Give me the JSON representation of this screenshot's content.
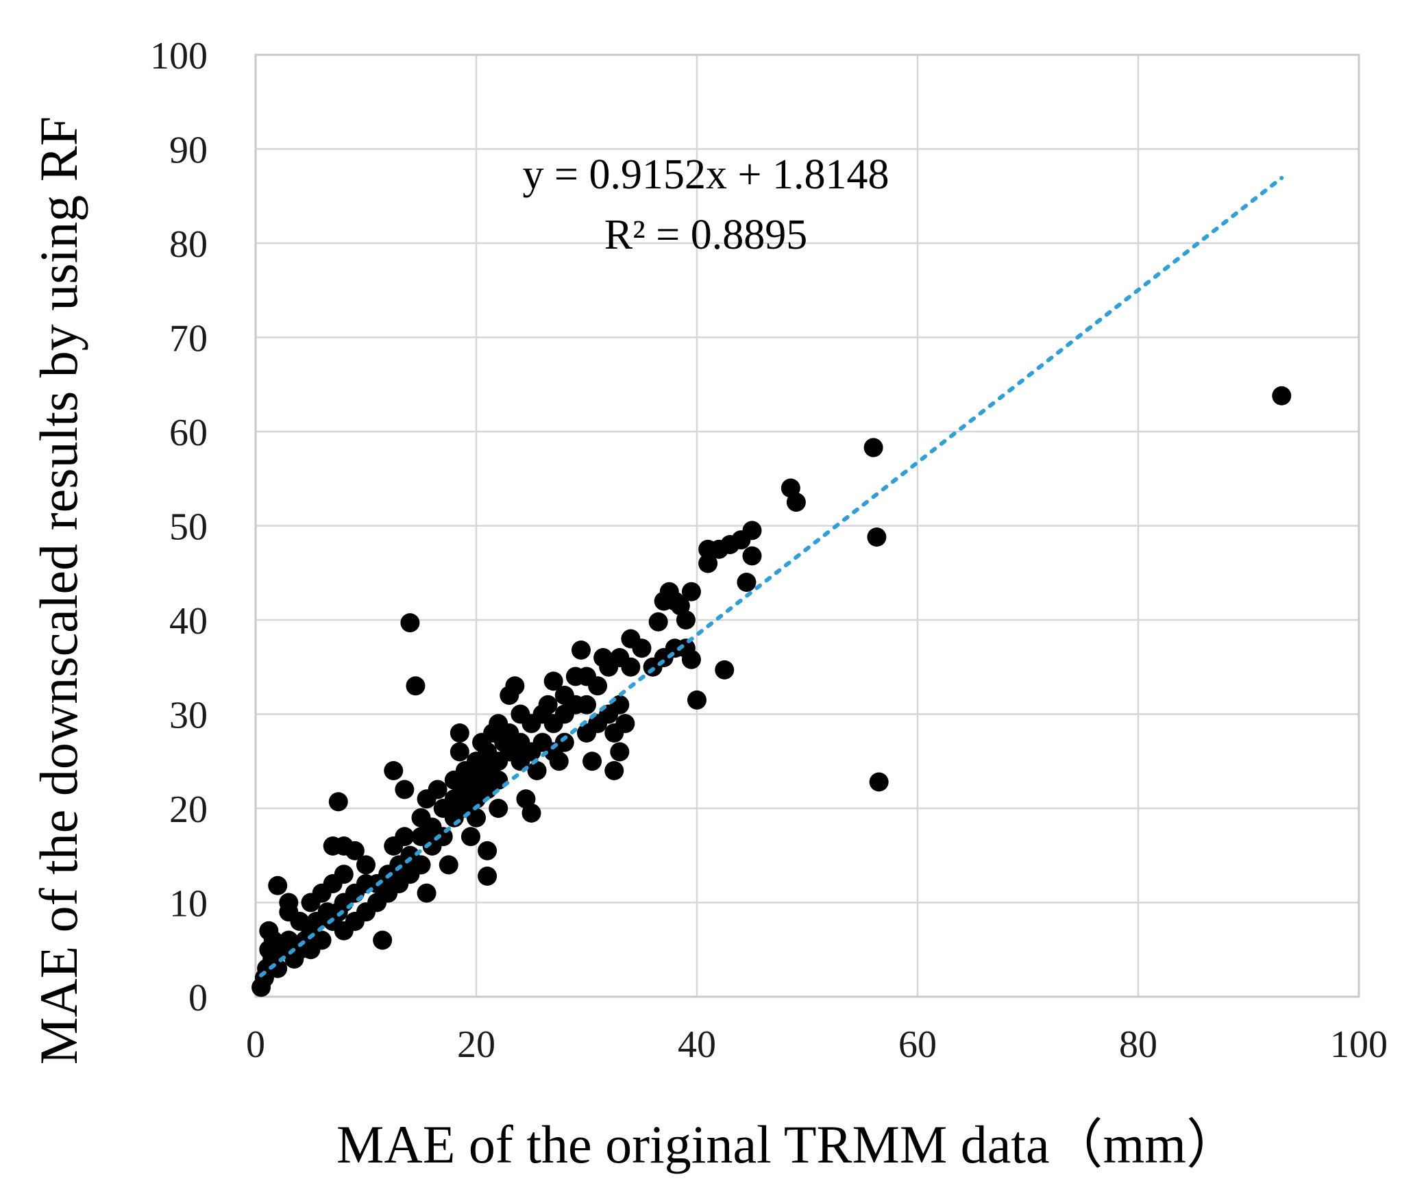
{
  "chart_data": {
    "type": "scatter",
    "xlabel": "MAE  of the original TRMM data（mm）",
    "ylabel": "MAE  of the downscaled results by using RF",
    "xlim": [
      0,
      100
    ],
    "ylim": [
      0,
      100
    ],
    "xticks": [
      "0",
      "20",
      "40",
      "60",
      "80",
      "100"
    ],
    "yticks": [
      "0",
      "10",
      "20",
      "30",
      "40",
      "50",
      "60",
      "70",
      "80",
      "90",
      "100"
    ],
    "grid": true,
    "legend": "none",
    "trendline": {
      "slope": 0.9152,
      "intercept": 1.8148,
      "x_range": [
        0.5,
        93
      ],
      "style": "dotted",
      "color": "#2e9fd9",
      "equation": "y = 0.9152x  + 1.8148",
      "r_squared": "R² = 0.8895"
    },
    "point_color": "#000000",
    "series": [
      {
        "points": [
          [
            0.5,
            1
          ],
          [
            0.8,
            2
          ],
          [
            1,
            3
          ],
          [
            1.2,
            5
          ],
          [
            1.5,
            4
          ],
          [
            2,
            3
          ],
          [
            2,
            11.8
          ],
          [
            1.2,
            7
          ],
          [
            1.6,
            6
          ],
          [
            2.5,
            5
          ],
          [
            3,
            6
          ],
          [
            3,
            9
          ],
          [
            3,
            10
          ],
          [
            3.5,
            4
          ],
          [
            4,
            8
          ],
          [
            4,
            5
          ],
          [
            4.5,
            6
          ],
          [
            5,
            7
          ],
          [
            5,
            10
          ],
          [
            5,
            5
          ],
          [
            5.5,
            8
          ],
          [
            6,
            11
          ],
          [
            6,
            6
          ],
          [
            6.5,
            9
          ],
          [
            7,
            8
          ],
          [
            7,
            12
          ],
          [
            7.5,
            9
          ],
          [
            8,
            10
          ],
          [
            8,
            7
          ],
          [
            8,
            13
          ],
          [
            7.5,
            20.7
          ],
          [
            7,
            16
          ],
          [
            8,
            16
          ],
          [
            9,
            15.5
          ],
          [
            9,
            11
          ],
          [
            9,
            8
          ],
          [
            10,
            12
          ],
          [
            10,
            9
          ],
          [
            10,
            14
          ],
          [
            11,
            12
          ],
          [
            11,
            10
          ],
          [
            11.5,
            6
          ],
          [
            12,
            13
          ],
          [
            12,
            11
          ],
          [
            12.5,
            24
          ],
          [
            12.5,
            16
          ],
          [
            13,
            14
          ],
          [
            13,
            12
          ],
          [
            13.5,
            17
          ],
          [
            13.5,
            22
          ],
          [
            14,
            15
          ],
          [
            14,
            13
          ],
          [
            14,
            39.7
          ],
          [
            14.5,
            33
          ],
          [
            15,
            17
          ],
          [
            15,
            14
          ],
          [
            15,
            19
          ],
          [
            15.5,
            11
          ],
          [
            15.5,
            21
          ],
          [
            16,
            18
          ],
          [
            16,
            16
          ],
          [
            16.5,
            22
          ],
          [
            17,
            20
          ],
          [
            17,
            17
          ],
          [
            17.5,
            14
          ],
          [
            18,
            23
          ],
          [
            18,
            21
          ],
          [
            18,
            19
          ],
          [
            18.5,
            26
          ],
          [
            18.5,
            28
          ],
          [
            19,
            24
          ],
          [
            19,
            22
          ],
          [
            19,
            20
          ],
          [
            19.5,
            17
          ],
          [
            20,
            25
          ],
          [
            20,
            23
          ],
          [
            20,
            21
          ],
          [
            20,
            19
          ],
          [
            20.5,
            27
          ],
          [
            21,
            26
          ],
          [
            21,
            24
          ],
          [
            21,
            22
          ],
          [
            21,
            15.5
          ],
          [
            21,
            12.8
          ],
          [
            21.5,
            28
          ],
          [
            22,
            29
          ],
          [
            22,
            25
          ],
          [
            22,
            23
          ],
          [
            22,
            20
          ],
          [
            22.5,
            27
          ],
          [
            23,
            28
          ],
          [
            23,
            26
          ],
          [
            23,
            32
          ],
          [
            23.5,
            33
          ],
          [
            24,
            30
          ],
          [
            24,
            27
          ],
          [
            24,
            25
          ],
          [
            24.5,
            21
          ],
          [
            25,
            29
          ],
          [
            25,
            26
          ],
          [
            25,
            19.5
          ],
          [
            25.5,
            24
          ],
          [
            26,
            30
          ],
          [
            26,
            27
          ],
          [
            26.5,
            31
          ],
          [
            27,
            33.5
          ],
          [
            27,
            29
          ],
          [
            27,
            26
          ],
          [
            27.5,
            25
          ],
          [
            28,
            32
          ],
          [
            28,
            30
          ],
          [
            28,
            27
          ],
          [
            29,
            31
          ],
          [
            29,
            34
          ],
          [
            29.5,
            36.8
          ],
          [
            30,
            34
          ],
          [
            30,
            31
          ],
          [
            30,
            28
          ],
          [
            30.5,
            25
          ],
          [
            31,
            33
          ],
          [
            31,
            29
          ],
          [
            31.5,
            36
          ],
          [
            32,
            35
          ],
          [
            32,
            30
          ],
          [
            32.5,
            28
          ],
          [
            32.5,
            24
          ],
          [
            33,
            36
          ],
          [
            33,
            31
          ],
          [
            33,
            26
          ],
          [
            33.5,
            29
          ],
          [
            34,
            38
          ],
          [
            34,
            35
          ],
          [
            35,
            37
          ],
          [
            36,
            35
          ],
          [
            36.5,
            39.8
          ],
          [
            37,
            36
          ],
          [
            37,
            42
          ],
          [
            37.5,
            43
          ],
          [
            38,
            37
          ],
          [
            38,
            42
          ],
          [
            38.5,
            41.5
          ],
          [
            39,
            40
          ],
          [
            39,
            37
          ],
          [
            39.5,
            43
          ],
          [
            39.5,
            35.8
          ],
          [
            40,
            31.5
          ],
          [
            41,
            46
          ],
          [
            41,
            47.5
          ],
          [
            42,
            47.5
          ],
          [
            42.5,
            34.7
          ],
          [
            43,
            48
          ],
          [
            44,
            48.5
          ],
          [
            44.5,
            44
          ],
          [
            45,
            46.8
          ],
          [
            45,
            49.5
          ],
          [
            48.5,
            54
          ],
          [
            49,
            52.5
          ],
          [
            56,
            58.3
          ],
          [
            56.3,
            48.8
          ],
          [
            56.5,
            22.8
          ],
          [
            93,
            63.8
          ]
        ]
      }
    ]
  }
}
